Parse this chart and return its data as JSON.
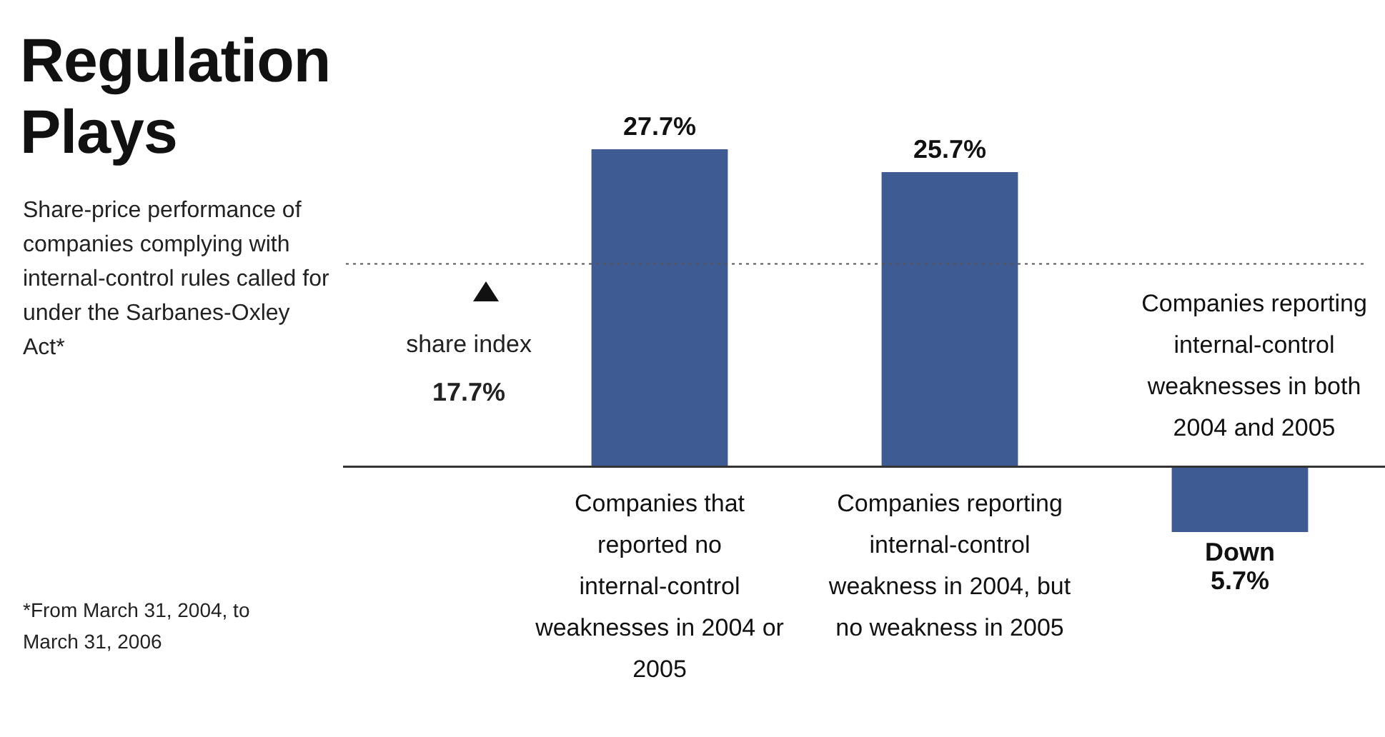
{
  "chart_data": {
    "type": "bar",
    "title": "Regulation Plays",
    "subtitle": "Share-price performance of companies complying with internal-control rules called for under the Sarbanes-Oxley Act*",
    "categories": [
      "Companies that reported no internal-control weaknesses in 2004 or 2005",
      "Companies reporting internal-control weakness in 2004, but no weakness in 2005",
      "Companies reporting internal-control weaknesses in both 2004 and 2005"
    ],
    "values": [
      27.7,
      25.7,
      -5.7
    ],
    "value_labels": [
      "27.7%",
      "25.7%",
      "Down 5.7%"
    ],
    "color": "#3f5b94",
    "tick_labels": false,
    "legend": false,
    "ref_lines": [
      {
        "axis": "y",
        "value": 17.7,
        "label": "share index",
        "color": "#555555",
        "line_style": "dotted"
      }
    ],
    "annotations": [
      "17.7%",
      "*From March 31, 2004, to March 31, 2006"
    ]
  }
}
